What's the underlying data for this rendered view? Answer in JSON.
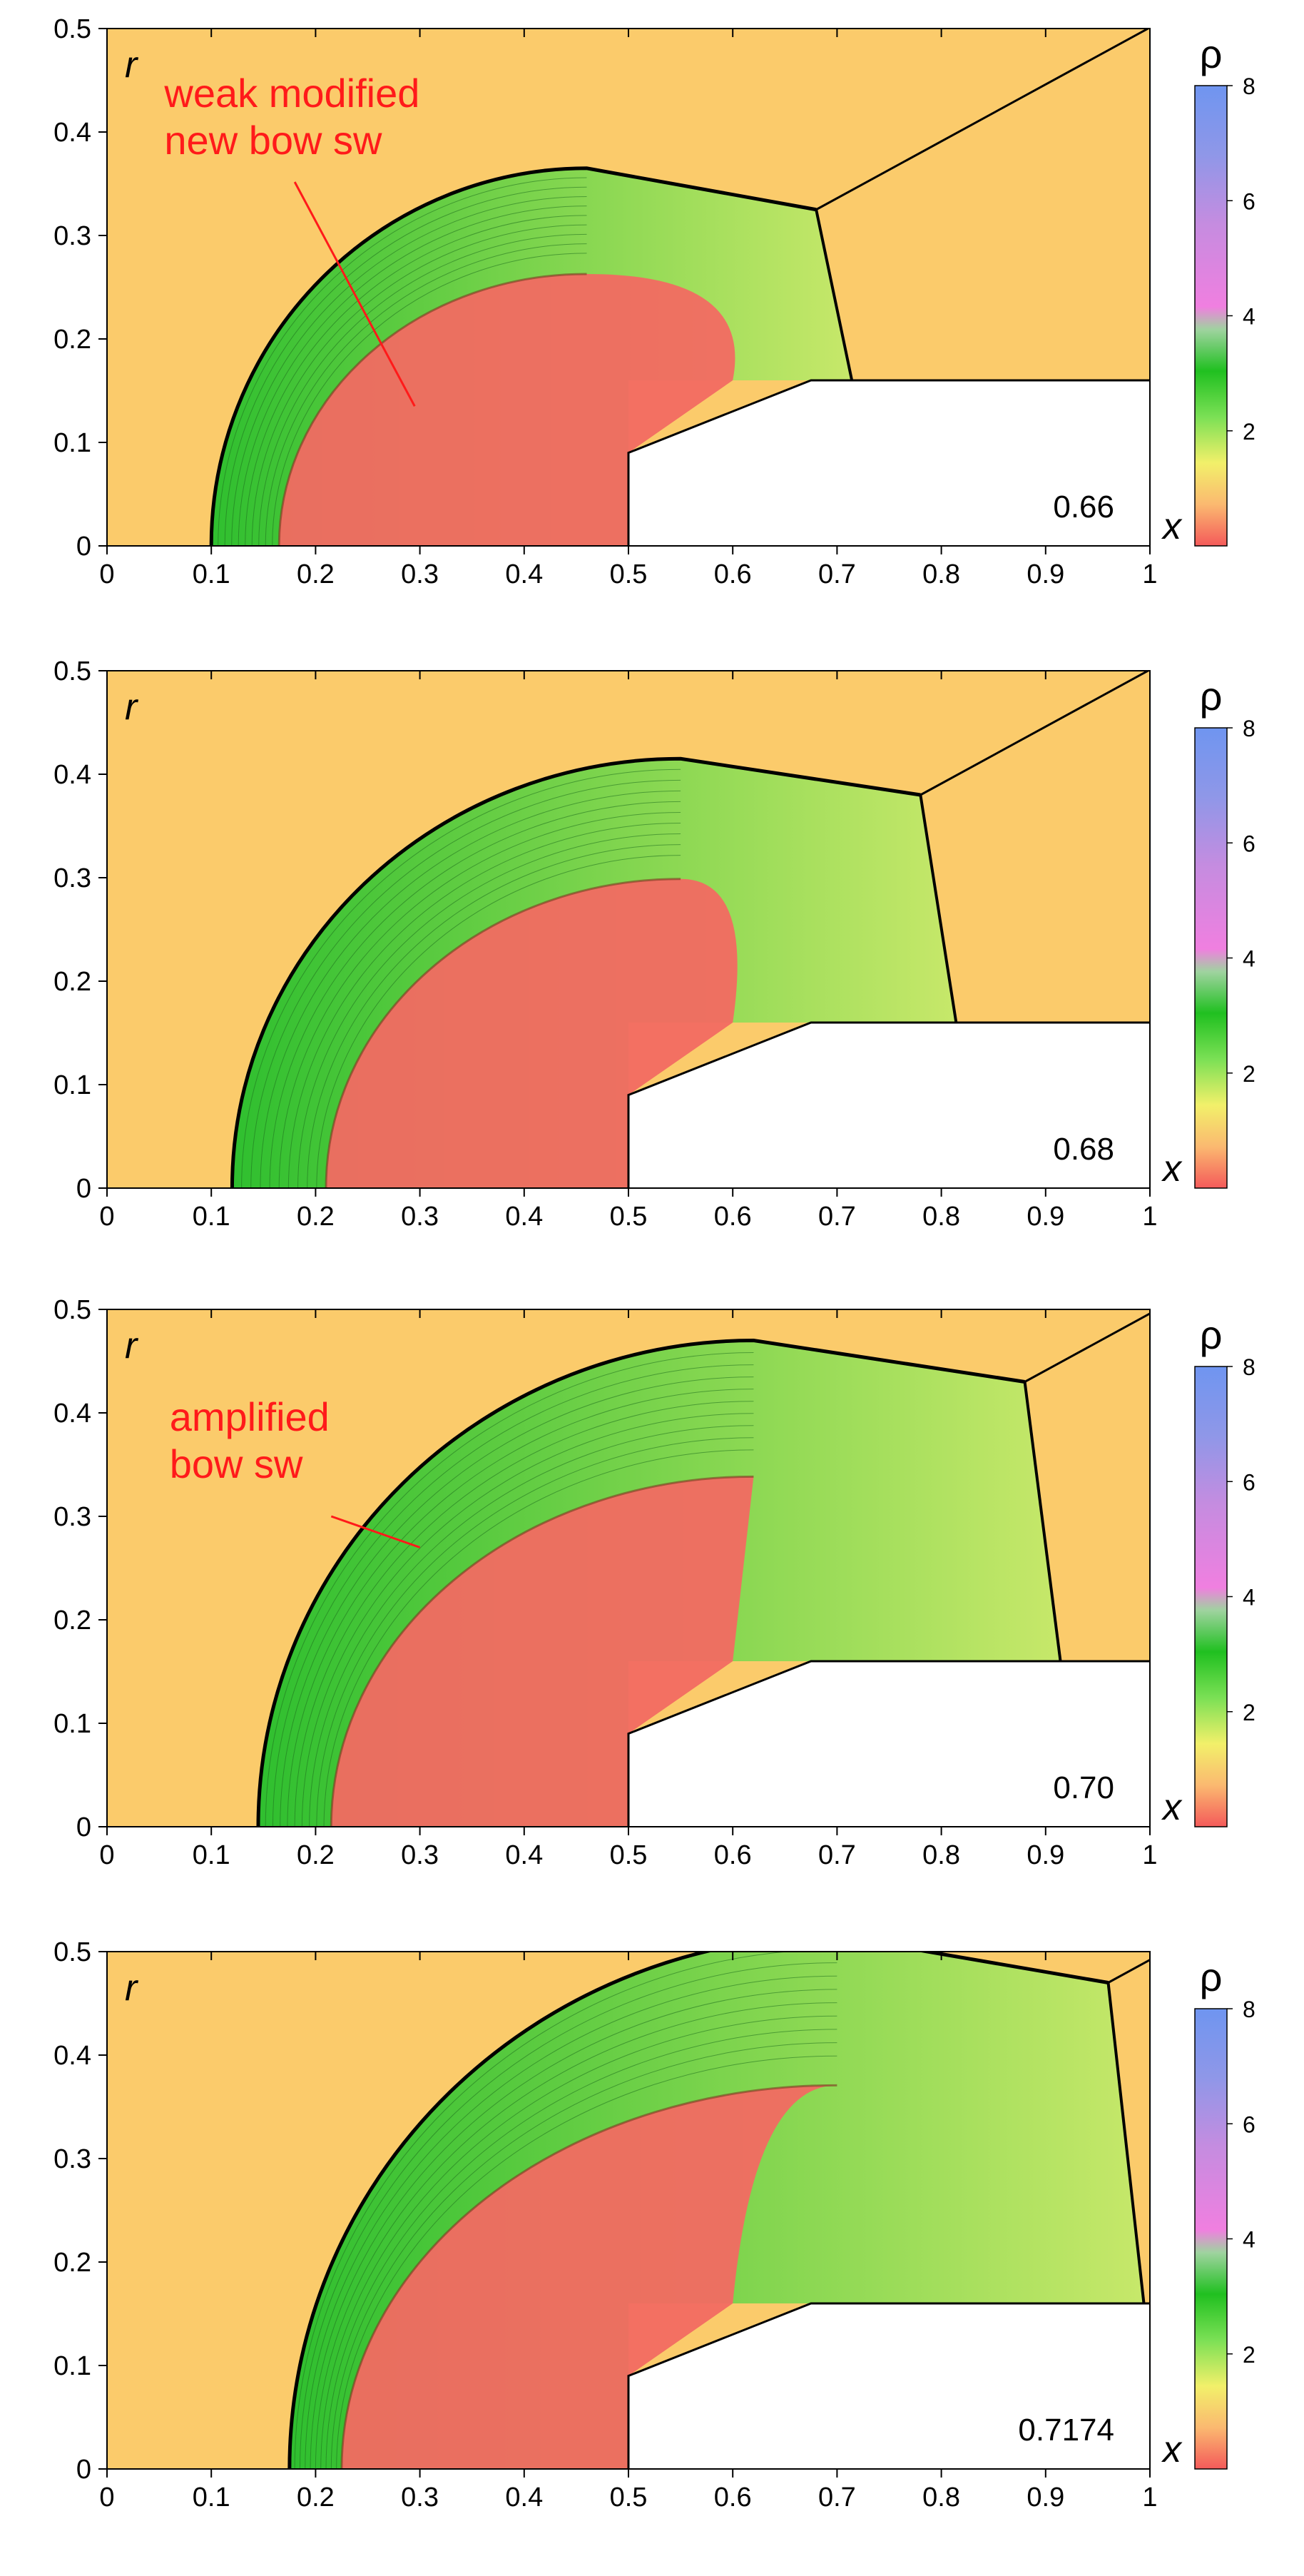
{
  "figure": {
    "colorbar_label": "ρ",
    "colorbar_ticks": [
      2,
      4,
      6,
      8
    ],
    "colorbar_range": [
      0,
      8
    ]
  },
  "colors": {
    "freestream": "#FBCB6B",
    "low_density": "#F26A62",
    "shock_layer": "#42C842",
    "annotation": "#FF1A1A",
    "body": "#FFFFFF"
  },
  "chart_data": [
    {
      "type": "contour",
      "time_label": "0.66",
      "xlabel": "x",
      "ylabel": "r",
      "xlim": [
        0,
        1
      ],
      "ylim": [
        0,
        0.5
      ],
      "xticks": [
        "0",
        "0.1",
        "0.2",
        "0.3",
        "0.4",
        "0.5",
        "0.6",
        "0.7",
        "0.8",
        "0.9",
        "1"
      ],
      "yticks": [
        "0",
        "0.1",
        "0.2",
        "0.3",
        "0.4",
        "0.5"
      ],
      "body_outline": [
        [
          0.5,
          0
        ],
        [
          0.5,
          0.09
        ],
        [
          0.675,
          0.16
        ],
        [
          1.0,
          0.16
        ]
      ],
      "bow_shock": {
        "x0": 0.1,
        "apex_x": 0.46,
        "apex_r": 0.365,
        "triple_x": 0.68,
        "triple_r": 0.325
      },
      "inner_front_x0": 0.165,
      "annotation": [
        "weak modified",
        "new bow sw"
      ]
    },
    {
      "type": "contour",
      "time_label": "0.68",
      "xlabel": "x",
      "ylabel": "r",
      "xlim": [
        0,
        1
      ],
      "ylim": [
        0,
        0.5
      ],
      "xticks": [
        "0",
        "0.1",
        "0.2",
        "0.3",
        "0.4",
        "0.5",
        "0.6",
        "0.7",
        "0.8",
        "0.9",
        "1"
      ],
      "yticks": [
        "0",
        "0.1",
        "0.2",
        "0.3",
        "0.4",
        "0.5"
      ],
      "body_outline": [
        [
          0.5,
          0
        ],
        [
          0.5,
          0.09
        ],
        [
          0.675,
          0.16
        ],
        [
          1.0,
          0.16
        ]
      ],
      "bow_shock": {
        "x0": 0.12,
        "apex_x": 0.55,
        "apex_r": 0.415,
        "triple_x": 0.78,
        "triple_r": 0.38
      },
      "inner_front_x0": 0.21,
      "annotation": []
    },
    {
      "type": "contour",
      "time_label": "0.70",
      "xlabel": "x",
      "ylabel": "r",
      "xlim": [
        0,
        1
      ],
      "ylim": [
        0,
        0.5
      ],
      "xticks": [
        "0",
        "0.1",
        "0.2",
        "0.3",
        "0.4",
        "0.5",
        "0.6",
        "0.7",
        "0.8",
        "0.9",
        "1"
      ],
      "yticks": [
        "0",
        "0.1",
        "0.2",
        "0.3",
        "0.4",
        "0.5"
      ],
      "body_outline": [
        [
          0.5,
          0
        ],
        [
          0.5,
          0.09
        ],
        [
          0.675,
          0.16
        ],
        [
          1.0,
          0.16
        ]
      ],
      "bow_shock": {
        "x0": 0.145,
        "apex_x": 0.62,
        "apex_r": 0.47,
        "triple_x": 0.88,
        "triple_r": 0.43
      },
      "inner_front_x0": 0.215,
      "annotation": [
        "amplified",
        "bow sw"
      ]
    },
    {
      "type": "contour",
      "time_label": "0.7174",
      "xlabel": "x",
      "ylabel": "r",
      "xlim": [
        0,
        1
      ],
      "ylim": [
        0,
        0.5
      ],
      "xticks": [
        "0",
        "0.1",
        "0.2",
        "0.3",
        "0.4",
        "0.5",
        "0.6",
        "0.7",
        "0.8",
        "0.9",
        "1"
      ],
      "yticks": [
        "0",
        "0.1",
        "0.2",
        "0.3",
        "0.4",
        "0.5"
      ],
      "body_outline": [
        [
          0.5,
          0
        ],
        [
          0.5,
          0.09
        ],
        [
          0.675,
          0.16
        ],
        [
          1.0,
          0.16
        ]
      ],
      "bow_shock": {
        "x0": 0.175,
        "apex_x": 0.7,
        "apex_r": 0.515,
        "triple_x": 0.96,
        "triple_r": 0.47
      },
      "inner_front_x0": 0.225,
      "annotation": []
    }
  ]
}
